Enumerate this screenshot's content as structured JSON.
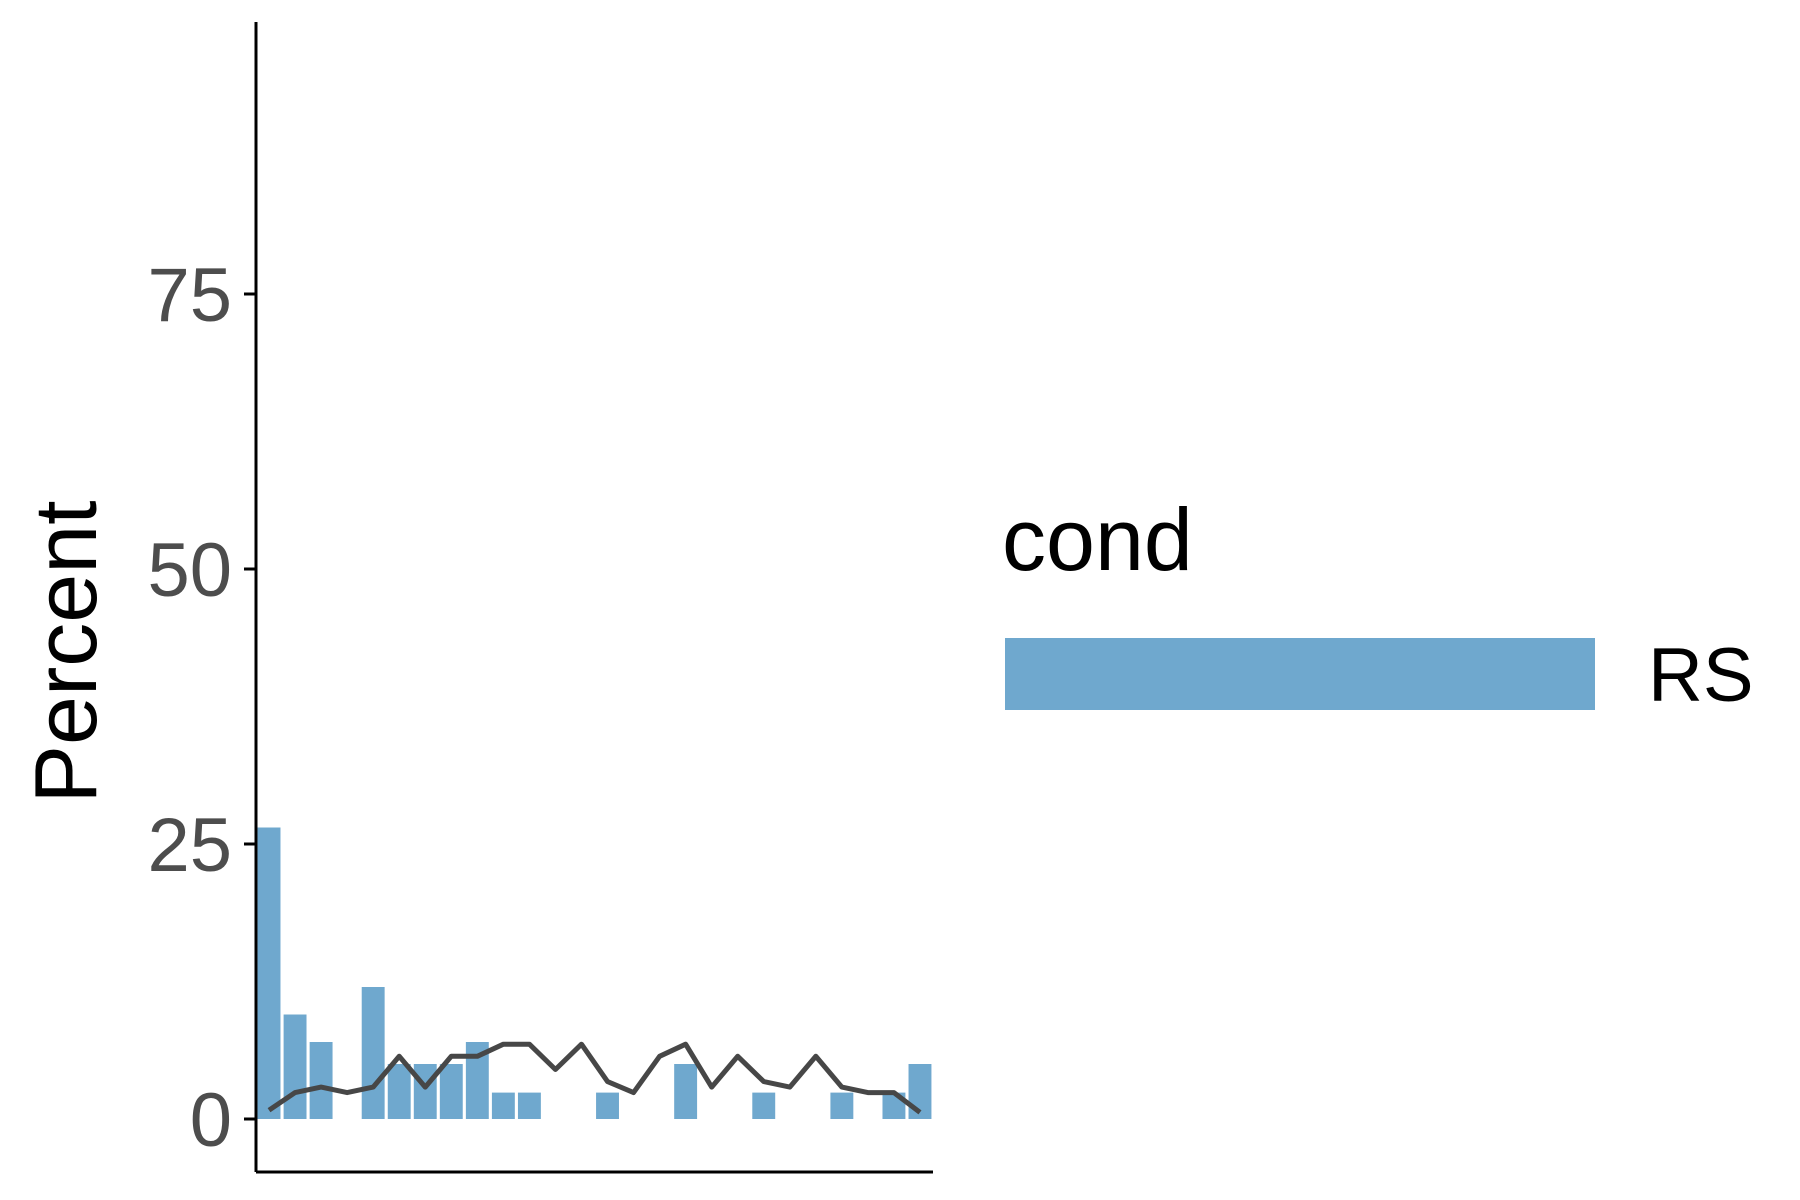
{
  "chart_data": {
    "type": "bar",
    "ylabel": "Percent",
    "ylim": [
      -5,
      105
    ],
    "yticks": [
      0,
      25,
      50,
      75
    ],
    "ytick_labels": [
      "0",
      "25",
      "50",
      "75"
    ],
    "x_count": 26,
    "bar_values": [
      26.5,
      9.5,
      7,
      0,
      12,
      5,
      5,
      5,
      7,
      2.4,
      2.4,
      0,
      0,
      2.4,
      0,
      0,
      5,
      0,
      0,
      2.4,
      0,
      0,
      2.4,
      0,
      2.4,
      5
    ],
    "line_values": [
      0.8,
      2.4,
      2.9,
      2.4,
      2.9,
      5.7,
      2.9,
      5.7,
      5.7,
      6.8,
      6.8,
      4.5,
      6.8,
      3.4,
      2.4,
      5.7,
      6.8,
      2.9,
      5.7,
      3.4,
      2.9,
      5.7,
      2.9,
      2.4,
      2.4,
      0.6
    ],
    "legend": {
      "title": "cond",
      "items": [
        {
          "label": "RS",
          "color": "#6fa8ce"
        }
      ],
      "position": "right"
    },
    "colors": {
      "bar": "#6fa8ce",
      "line": "#474747",
      "axis": "#000000"
    },
    "grid": false
  }
}
